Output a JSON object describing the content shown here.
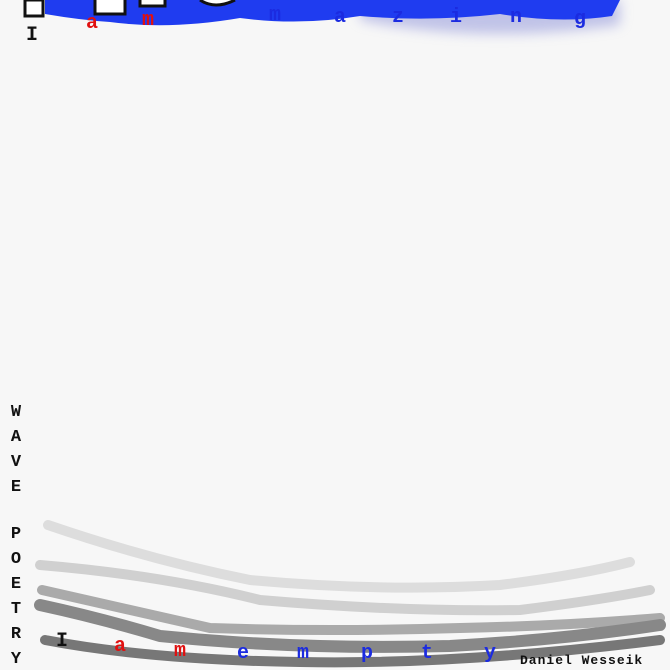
{
  "top_phrase": {
    "letters": [
      "I",
      "a",
      "m",
      "m",
      "a",
      "z",
      "i",
      "n",
      "g"
    ]
  },
  "side_title": {
    "letters": [
      "W",
      "A",
      "V",
      "E",
      "P",
      "O",
      "E",
      "T",
      "R",
      "Y"
    ]
  },
  "bottom_phrase": {
    "letters": [
      "I",
      "a",
      "m",
      "e",
      "m",
      "p",
      "t",
      "y"
    ]
  },
  "signature": "Daniel Wesseik"
}
